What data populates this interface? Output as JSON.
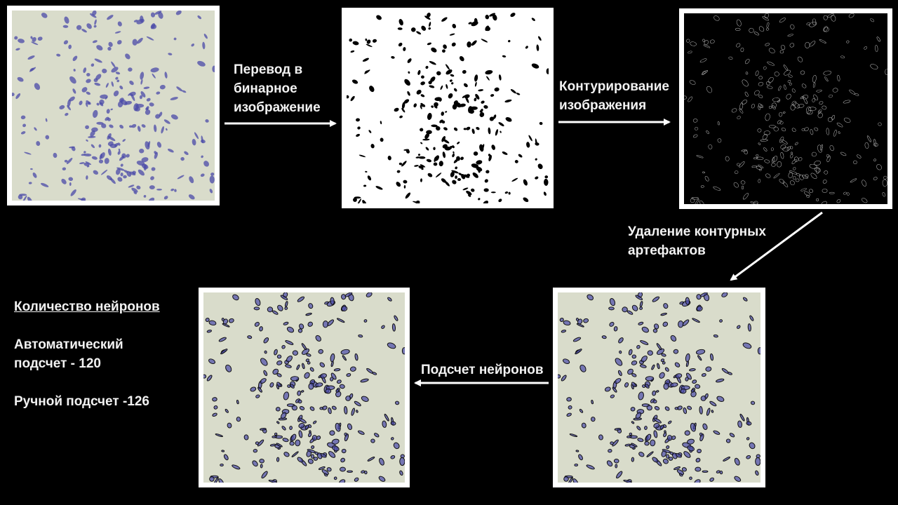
{
  "steps": {
    "binarize": "Перевод в бинарное изображение",
    "contour": "Контурирование изображения",
    "remove_artifacts": "Удаление контурных артефактов",
    "count": "Подсчет нейронов"
  },
  "stats": {
    "title": "Количество нейронов",
    "auto_line1": "Автоматический",
    "auto_line2": "подсчет -  120",
    "manual": "Ручной подсчет -126"
  },
  "colors": {
    "background": "#000000",
    "tissue": "#d9dccb",
    "stain": "#4a4aa8",
    "outline": "#101010"
  }
}
